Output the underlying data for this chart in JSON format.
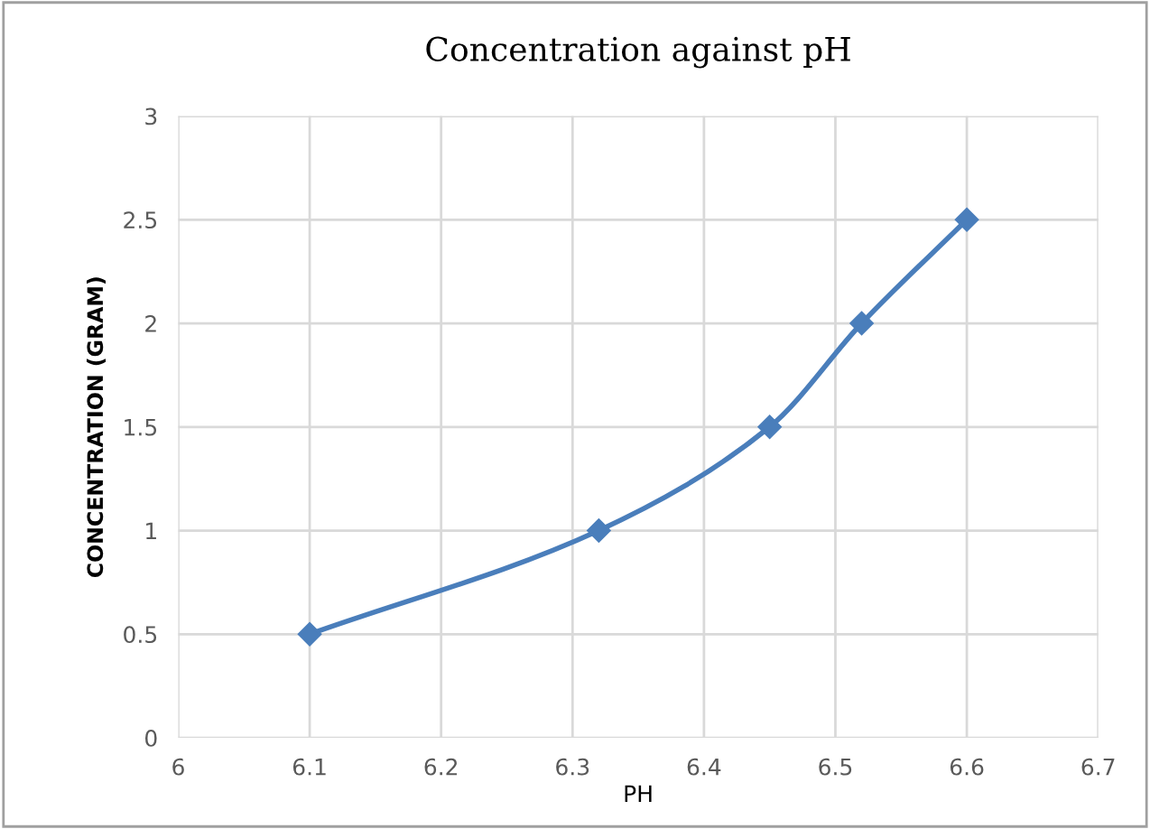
{
  "chart_data": {
    "type": "line",
    "title": "Concentration against pH",
    "xlabel": "PH",
    "ylabel": "CONCENTRATION (GRAM)",
    "x": [
      6.1,
      6.32,
      6.45,
      6.52,
      6.6
    ],
    "series": [
      {
        "color": "#4a7ebb",
        "values": [
          0.5,
          1,
          1.5,
          2,
          2.5
        ]
      }
    ],
    "xlim": [
      6,
      6.7
    ],
    "xticks": [
      6,
      6.1,
      6.2,
      6.3,
      6.4,
      6.5,
      6.6,
      6.7
    ],
    "ylim": [
      0,
      3
    ],
    "yticks": [
      0,
      0.5,
      1,
      1.5,
      2,
      2.5,
      3
    ],
    "grid": true,
    "marker": "diamond",
    "line_style": "solid"
  }
}
